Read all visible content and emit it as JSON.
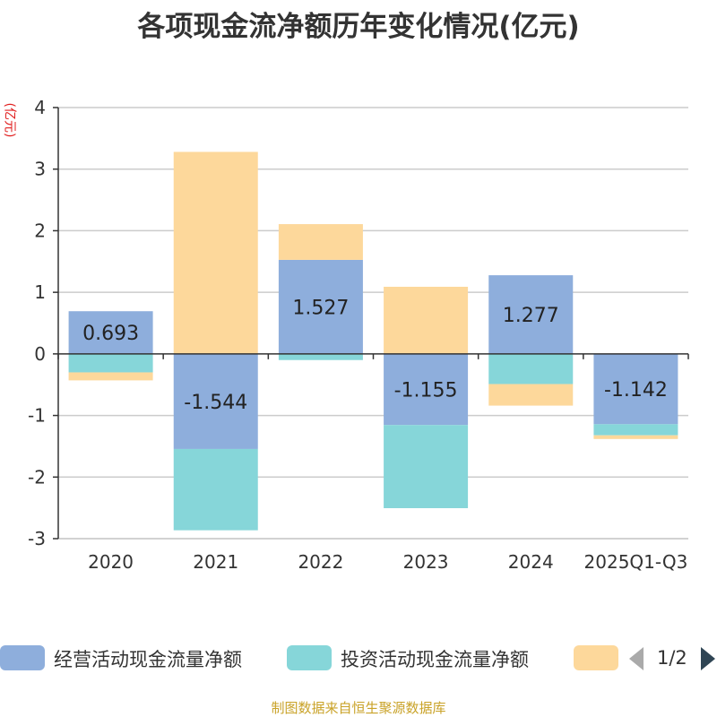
{
  "chart_data": {
    "type": "bar",
    "stacked": true,
    "title": "各项现金流净额历年变化情况(亿元)",
    "unit_label": "(亿元)",
    "categories": [
      "2020",
      "2021",
      "2022",
      "2023",
      "2024",
      "2025Q1-Q3"
    ],
    "ylim": [
      -3,
      4
    ],
    "yticks": [
      4,
      3,
      2,
      1,
      0,
      -1,
      -2,
      -3
    ],
    "grid": true,
    "legend_position": "bottom",
    "series": [
      {
        "name": "经营活动现金流量净额",
        "color": "#8eaedc",
        "values": [
          0.693,
          -1.544,
          1.527,
          -1.155,
          1.277,
          -1.142
        ],
        "labels": [
          "0.693",
          "-1.544",
          "1.527",
          "-1.155",
          "1.277",
          "-1.142"
        ]
      },
      {
        "name": "投资活动现金流量净额",
        "color": "#86d6d9",
        "values": [
          -0.3,
          -1.32,
          -0.1,
          -1.35,
          -0.49,
          -0.18
        ]
      },
      {
        "name": "",
        "color": "#fdd89b",
        "values": [
          -0.13,
          3.28,
          0.58,
          1.09,
          -0.35,
          -0.06
        ]
      }
    ]
  },
  "legend": {
    "page_indicator": "1/2"
  },
  "footer": {
    "source": "制图数据来自恒生聚源数据库"
  }
}
